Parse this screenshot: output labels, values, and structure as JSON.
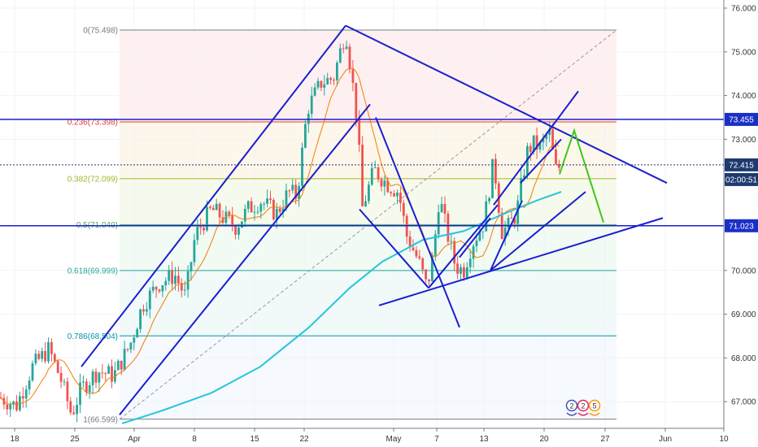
{
  "chart_data": {
    "type": "candlestick",
    "price_axis": {
      "ylim": [
        66.45,
        76.22
      ],
      "ticks": [
        "76.000",
        "75.000",
        "74.000",
        "73.000",
        "70.000",
        "69.000",
        "68.000",
        "67.000"
      ]
    },
    "time_axis": {
      "tick_labels": [
        "18",
        "25",
        "Apr",
        "8",
        "15",
        "22",
        "May",
        "7",
        "13",
        "20",
        "27",
        "Jun",
        "10"
      ]
    },
    "price_badges": [
      {
        "label": "73.455",
        "value": 73.455,
        "color": "#1a2fc6"
      },
      {
        "label": "72.415",
        "value": 72.415,
        "color": "#1e3a6e"
      },
      {
        "label": "02:00:51",
        "value": 72.08,
        "color": "#1e3a6e"
      },
      {
        "label": "71.023",
        "value": 71.023,
        "color": "#1a2fc6"
      }
    ],
    "fibonacci": {
      "levels": [
        {
          "label": "0(75.498)",
          "value": 75.498,
          "color": "#787b86"
        },
        {
          "label": "0.236(73.398)",
          "value": 73.398,
          "color": "#e53935"
        },
        {
          "label": "0.382(72.099)",
          "value": 72.099,
          "color": "#9bbb29"
        },
        {
          "label": "0.5(71.049)",
          "value": 71.049,
          "color": "#4caf50"
        },
        {
          "label": "0.618(69.999)",
          "value": 69.999,
          "color": "#26a69a"
        },
        {
          "label": "0.786(68.504)",
          "value": 68.504,
          "color": "#0097a7"
        },
        {
          "label": "1(66.599)",
          "value": 66.599,
          "color": "#787b86"
        }
      ]
    },
    "horizontal_lines": [
      73.455,
      71.023
    ],
    "colors": {
      "up_candle": "#26a69a",
      "down_candle": "#ef5350",
      "trendline": "#1a1fcf",
      "ma_fast": "#f57c00",
      "ma_slow": "#26c6da",
      "projection": "#3ec71a"
    },
    "pattern_labels": [
      "2",
      "2",
      "5"
    ]
  }
}
